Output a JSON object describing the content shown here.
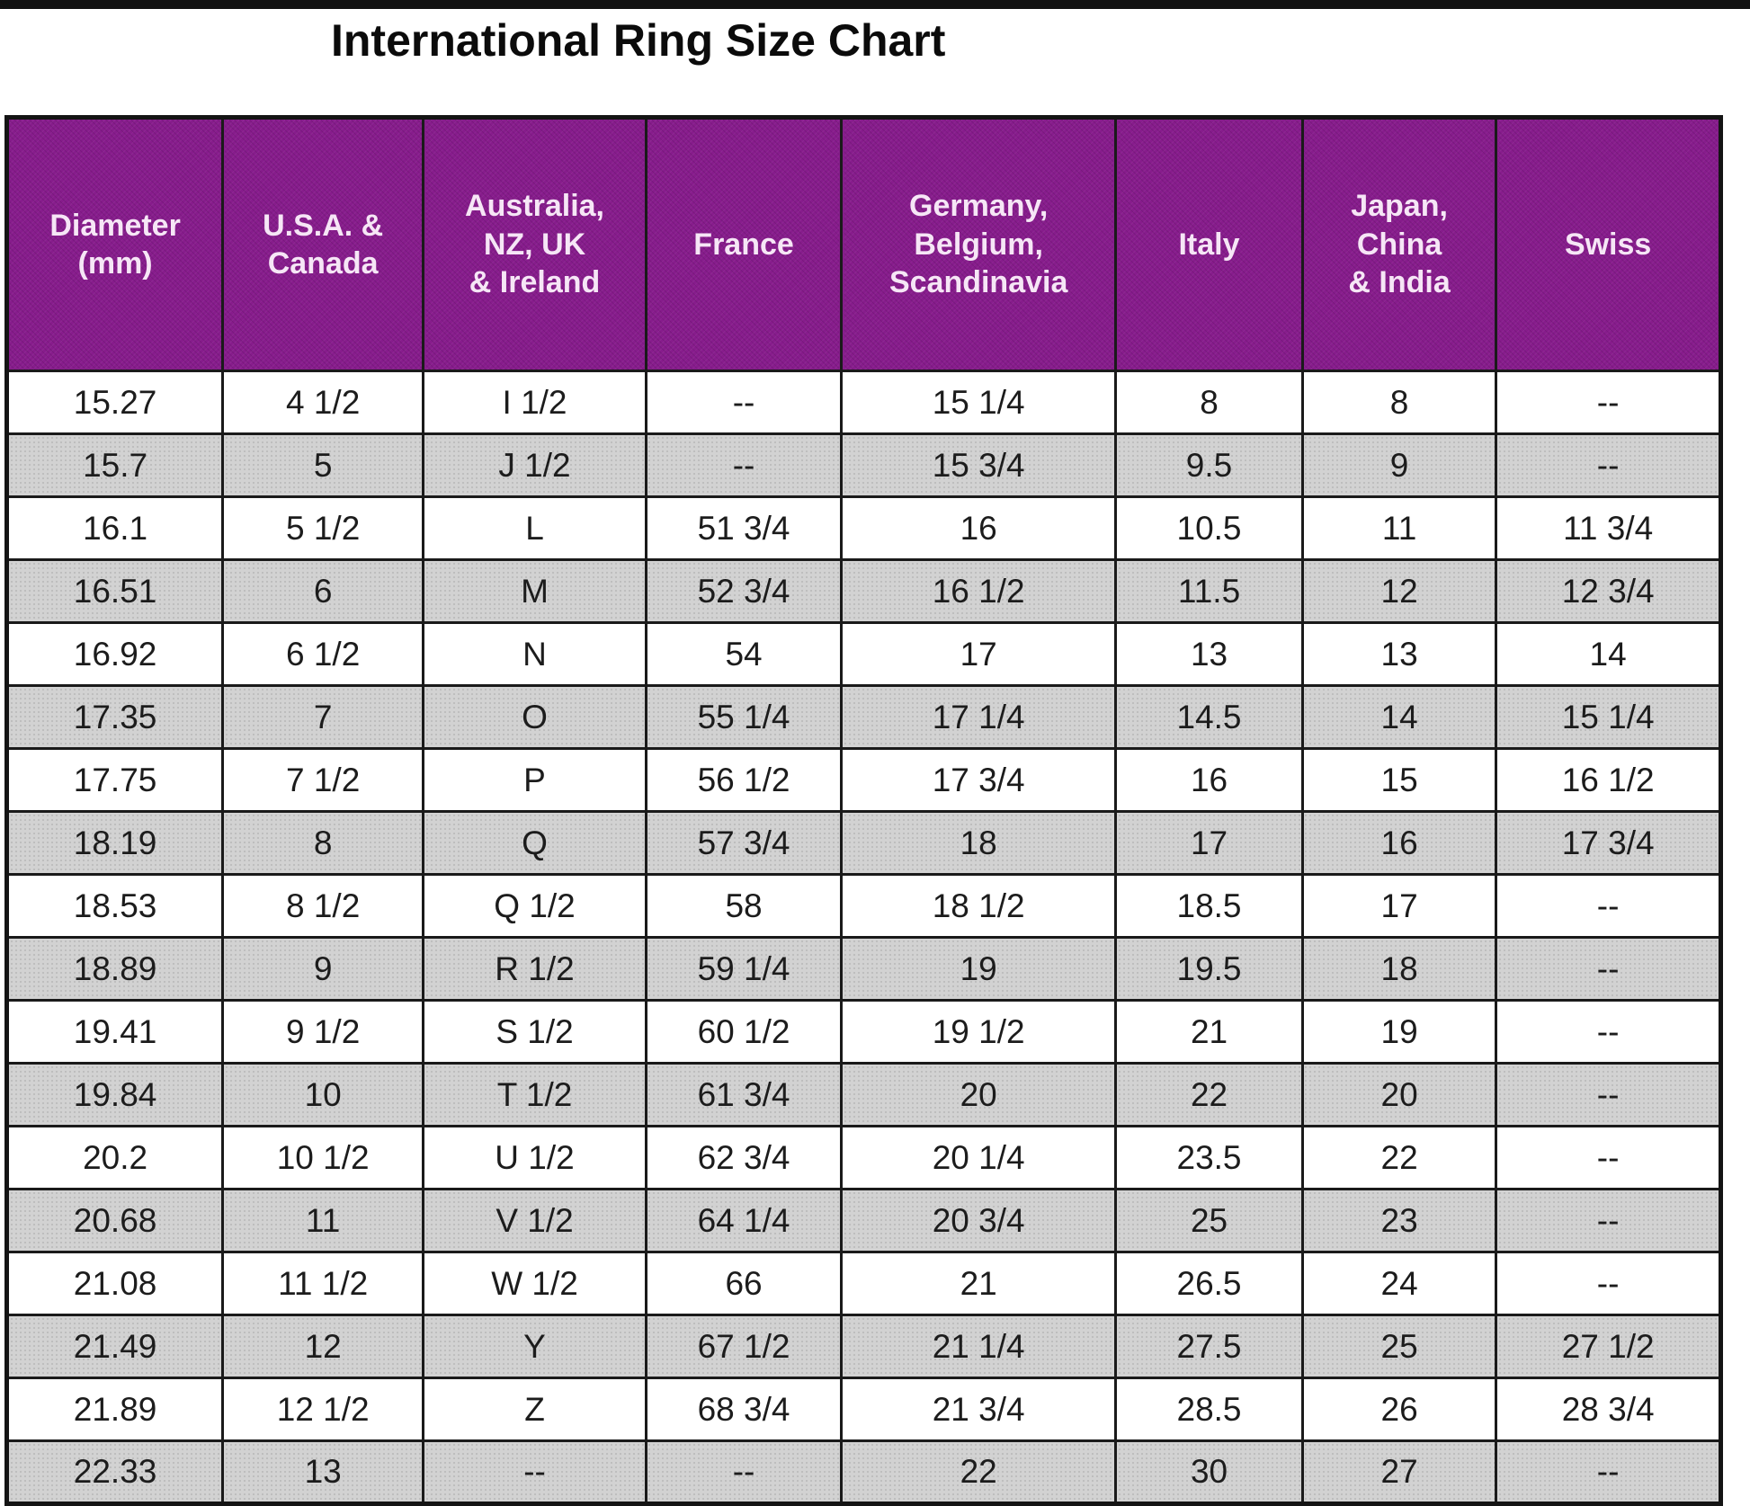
{
  "page": {
    "title": "International Ring Size Chart"
  },
  "colors": {
    "header_background": "#871c8c",
    "header_text": "#f6e6f6",
    "row_alt_gray": "#d2d2d2",
    "border": "#1a1a1a",
    "top_strip": "#111111"
  },
  "table": {
    "columns": [
      {
        "id": "diameter_mm",
        "label": "Diameter\n(mm)"
      },
      {
        "id": "usa_canada",
        "label": "U.S.A. &\nCanada"
      },
      {
        "id": "aus_nz_uk_ie",
        "label": "Australia,\nNZ, UK\n& Ireland"
      },
      {
        "id": "france",
        "label": "France"
      },
      {
        "id": "ger_bel_scan",
        "label": "Germany,\nBelgium,\nScandinavia"
      },
      {
        "id": "italy",
        "label": "Italy"
      },
      {
        "id": "japan_china_india",
        "label": "Japan,\nChina\n& India"
      },
      {
        "id": "swiss",
        "label": "Swiss"
      }
    ],
    "rows": [
      [
        "15.27",
        "4 1/2",
        "I 1/2",
        "--",
        "15 1/4",
        "8",
        "8",
        "--"
      ],
      [
        "15.7",
        "5",
        "J 1/2",
        "--",
        "15 3/4",
        "9.5",
        "9",
        "--"
      ],
      [
        "16.1",
        "5 1/2",
        "L",
        "51 3/4",
        "16",
        "10.5",
        "11",
        "11 3/4"
      ],
      [
        "16.51",
        "6",
        "M",
        "52 3/4",
        "16 1/2",
        "11.5",
        "12",
        "12 3/4"
      ],
      [
        "16.92",
        "6 1/2",
        "N",
        "54",
        "17",
        "13",
        "13",
        "14"
      ],
      [
        "17.35",
        "7",
        "O",
        "55 1/4",
        "17 1/4",
        "14.5",
        "14",
        "15 1/4"
      ],
      [
        "17.75",
        "7 1/2",
        "P",
        "56 1/2",
        "17 3/4",
        "16",
        "15",
        "16 1/2"
      ],
      [
        "18.19",
        "8",
        "Q",
        "57 3/4",
        "18",
        "17",
        "16",
        "17 3/4"
      ],
      [
        "18.53",
        "8 1/2",
        "Q 1/2",
        "58",
        "18 1/2",
        "18.5",
        "17",
        "--"
      ],
      [
        "18.89",
        "9",
        "R 1/2",
        "59 1/4",
        "19",
        "19.5",
        "18",
        "--"
      ],
      [
        "19.41",
        "9 1/2",
        "S 1/2",
        "60 1/2",
        "19 1/2",
        "21",
        "19",
        "--"
      ],
      [
        "19.84",
        "10",
        "T 1/2",
        "61 3/4",
        "20",
        "22",
        "20",
        "--"
      ],
      [
        "20.2",
        "10 1/2",
        "U 1/2",
        "62 3/4",
        "20 1/4",
        "23.5",
        "22",
        "--"
      ],
      [
        "20.68",
        "11",
        "V 1/2",
        "64 1/4",
        "20 3/4",
        "25",
        "23",
        "--"
      ],
      [
        "21.08",
        "11 1/2",
        "W 1/2",
        "66",
        "21",
        "26.5",
        "24",
        "--"
      ],
      [
        "21.49",
        "12",
        "Y",
        "67 1/2",
        "21 1/4",
        "27.5",
        "25",
        "27 1/2"
      ],
      [
        "21.89",
        "12 1/2",
        "Z",
        "68 3/4",
        "21 3/4",
        "28.5",
        "26",
        "28 3/4"
      ],
      [
        "22.33",
        "13",
        "--",
        "--",
        "22",
        "30",
        "27",
        "--"
      ]
    ]
  }
}
